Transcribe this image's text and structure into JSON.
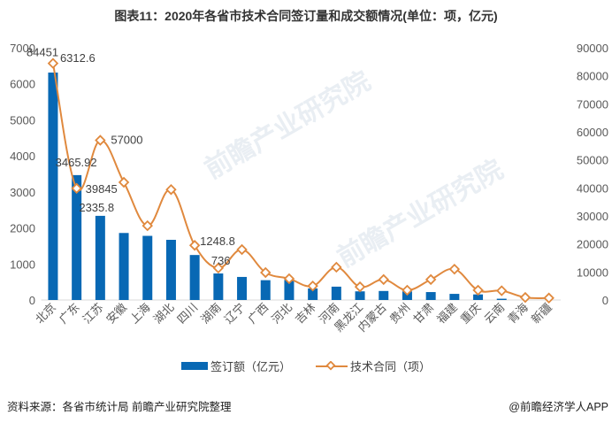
{
  "chart_data": {
    "type": "bar+line",
    "title": "图表11：2020年各省市技术合同签订量和成交额情况(单位：项，亿元)",
    "categories": [
      "北京",
      "广东",
      "江苏",
      "安徽",
      "上海",
      "湖北",
      "四川",
      "湖南",
      "辽宁",
      "广西",
      "河北",
      "吉林",
      "河南",
      "黑龙江",
      "内蒙古",
      "贵州",
      "甘肃",
      "福建",
      "重庆",
      "云南",
      "青海",
      "新疆"
    ],
    "series": [
      {
        "name": "签订额（亿元）",
        "type": "bar",
        "axis": "left",
        "color": "#0868B4",
        "values": [
          6312.6,
          3465.92,
          2335.8,
          1860,
          1780,
          1670,
          1248.8,
          736,
          640,
          550,
          560,
          320,
          370,
          240,
          250,
          240,
          220,
          170,
          155,
          35,
          0,
          0
        ],
        "data_labels": {
          "0": "6312.6",
          "1": "3465.92",
          "2": "2335.8",
          "6": "1248.8",
          "7": "736"
        }
      },
      {
        "name": "技术合同（项）",
        "type": "line",
        "axis": "right",
        "color": "#E0893E",
        "values": [
          84451,
          39845,
          57000,
          42000,
          26500,
          39400,
          19500,
          11400,
          18000,
          9800,
          7600,
          5000,
          11700,
          4700,
          7300,
          3500,
          7300,
          11000,
          3500,
          3300,
          900,
          700
        ],
        "data_labels": {
          "0": "84451",
          "1": "39845",
          "2": "57000"
        }
      }
    ],
    "left_axis": {
      "min": 0,
      "max": 7000,
      "ticks": [
        "0",
        "1000",
        "2000",
        "3000",
        "4000",
        "5000",
        "6000",
        "7000"
      ]
    },
    "right_axis": {
      "min": 0,
      "max": 90000,
      "ticks": [
        "0",
        "10000",
        "20000",
        "30000",
        "40000",
        "50000",
        "60000",
        "70000",
        "80000",
        "90000"
      ]
    },
    "grid": false,
    "legend_position": "bottom"
  },
  "footer": {
    "source": "资料来源：各省市统计局 前瞻产业研究院整理",
    "credit": "@前瞻经济学人APP"
  },
  "watermark": "前瞻产业研究院"
}
